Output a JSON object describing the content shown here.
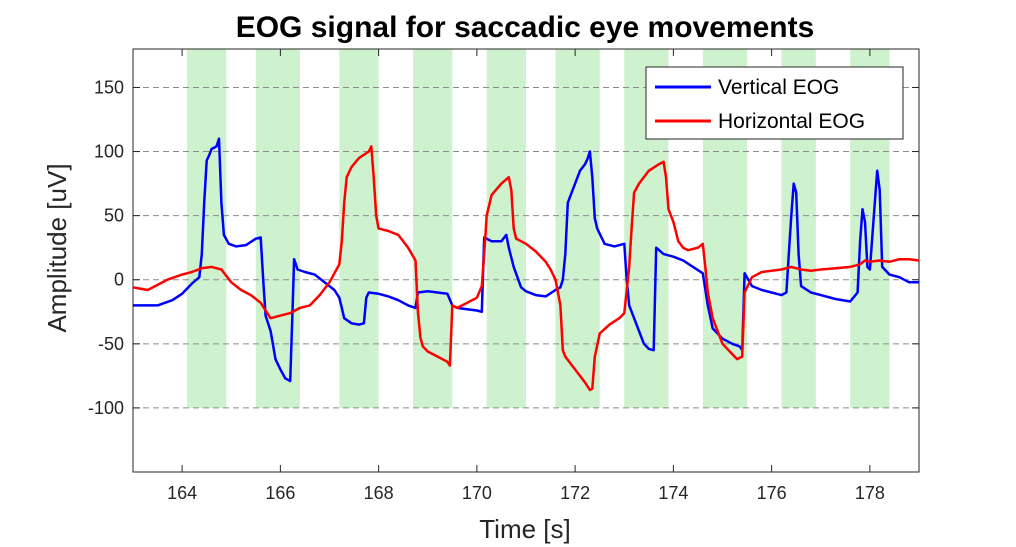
{
  "chart_data": {
    "type": "line",
    "title": "EOG signal for saccadic eye movements",
    "xlabel": "Time [s]",
    "ylabel": "Amplitude [uV]",
    "xlim": [
      163,
      179
    ],
    "ylim": [
      -150,
      180
    ],
    "xticks": [
      164,
      166,
      168,
      170,
      172,
      174,
      176,
      178
    ],
    "yticks": [
      150,
      100,
      50,
      0,
      -50,
      -100
    ],
    "grid": "horizontal-dashed",
    "legend_position": "top-right",
    "shaded_intervals": {
      "color": "#cdf2cd",
      "y_range": [
        -100,
        180
      ],
      "intervals": [
        [
          164.1,
          164.9
        ],
        [
          165.5,
          166.4
        ],
        [
          167.2,
          168.0
        ],
        [
          168.7,
          169.5
        ],
        [
          170.2,
          171.0
        ],
        [
          171.6,
          172.5
        ],
        [
          173.0,
          173.9
        ],
        [
          174.6,
          175.5
        ],
        [
          176.2,
          176.9
        ],
        [
          177.6,
          178.4
        ]
      ]
    },
    "series": [
      {
        "name": "Vertical EOG",
        "color": "#0000ff",
        "points": [
          [
            163.0,
            -20
          ],
          [
            163.5,
            -20
          ],
          [
            163.8,
            -16
          ],
          [
            164.0,
            -11
          ],
          [
            164.2,
            -3
          ],
          [
            164.35,
            2
          ],
          [
            164.4,
            20
          ],
          [
            164.45,
            60
          ],
          [
            164.5,
            93
          ],
          [
            164.55,
            97
          ],
          [
            164.6,
            102
          ],
          [
            164.7,
            104
          ],
          [
            164.75,
            110
          ],
          [
            164.8,
            60
          ],
          [
            164.85,
            35
          ],
          [
            164.95,
            28
          ],
          [
            165.1,
            26
          ],
          [
            165.3,
            27
          ],
          [
            165.5,
            32
          ],
          [
            165.6,
            33
          ],
          [
            165.65,
            0
          ],
          [
            165.7,
            -28
          ],
          [
            165.8,
            -40
          ],
          [
            165.9,
            -62
          ],
          [
            166.0,
            -70
          ],
          [
            166.1,
            -77
          ],
          [
            166.15,
            -78
          ],
          [
            166.2,
            -79
          ],
          [
            166.25,
            -20
          ],
          [
            166.28,
            16
          ],
          [
            166.35,
            8
          ],
          [
            166.5,
            6
          ],
          [
            166.7,
            4
          ],
          [
            166.9,
            -2
          ],
          [
            167.1,
            -8
          ],
          [
            167.2,
            -14
          ],
          [
            167.25,
            -22
          ],
          [
            167.3,
            -30
          ],
          [
            167.45,
            -34
          ],
          [
            167.6,
            -35
          ],
          [
            167.7,
            -34
          ],
          [
            167.75,
            -14
          ],
          [
            167.8,
            -10
          ],
          [
            168.0,
            -11
          ],
          [
            168.2,
            -13
          ],
          [
            168.4,
            -16
          ],
          [
            168.6,
            -20
          ],
          [
            168.75,
            -22
          ],
          [
            168.8,
            -10
          ],
          [
            169.0,
            -9
          ],
          [
            169.2,
            -10
          ],
          [
            169.4,
            -11
          ],
          [
            169.5,
            -20
          ],
          [
            169.6,
            -22
          ],
          [
            169.8,
            -23
          ],
          [
            170.0,
            -24
          ],
          [
            170.1,
            -25
          ],
          [
            170.15,
            33
          ],
          [
            170.3,
            30
          ],
          [
            170.5,
            30
          ],
          [
            170.6,
            35
          ],
          [
            170.65,
            25
          ],
          [
            170.75,
            10
          ],
          [
            170.9,
            -6
          ],
          [
            171.0,
            -9
          ],
          [
            171.2,
            -12
          ],
          [
            171.4,
            -13
          ],
          [
            171.6,
            -8
          ],
          [
            171.7,
            -6
          ],
          [
            171.75,
            0
          ],
          [
            171.8,
            20
          ],
          [
            171.85,
            60
          ],
          [
            171.9,
            65
          ],
          [
            172.0,
            75
          ],
          [
            172.1,
            85
          ],
          [
            172.2,
            90
          ],
          [
            172.25,
            94
          ],
          [
            172.3,
            100
          ],
          [
            172.35,
            80
          ],
          [
            172.4,
            48
          ],
          [
            172.45,
            40
          ],
          [
            172.6,
            28
          ],
          [
            172.8,
            26
          ],
          [
            173.0,
            28
          ],
          [
            173.05,
            0
          ],
          [
            173.1,
            -20
          ],
          [
            173.2,
            -30
          ],
          [
            173.3,
            -40
          ],
          [
            173.4,
            -50
          ],
          [
            173.5,
            -54
          ],
          [
            173.6,
            -55
          ],
          [
            173.65,
            25
          ],
          [
            173.8,
            20
          ],
          [
            174.0,
            18
          ],
          [
            174.2,
            15
          ],
          [
            174.4,
            10
          ],
          [
            174.6,
            5
          ],
          [
            174.7,
            -20
          ],
          [
            174.8,
            -38
          ],
          [
            175.0,
            -46
          ],
          [
            175.2,
            -50
          ],
          [
            175.35,
            -52
          ],
          [
            175.4,
            -55
          ],
          [
            175.45,
            5
          ],
          [
            175.6,
            -5
          ],
          [
            175.8,
            -8
          ],
          [
            176.0,
            -10
          ],
          [
            176.2,
            -12
          ],
          [
            176.3,
            -10
          ],
          [
            176.35,
            20
          ],
          [
            176.4,
            50
          ],
          [
            176.45,
            75
          ],
          [
            176.5,
            68
          ],
          [
            176.55,
            20
          ],
          [
            176.6,
            -5
          ],
          [
            176.8,
            -10
          ],
          [
            177.0,
            -12
          ],
          [
            177.3,
            -15
          ],
          [
            177.6,
            -17
          ],
          [
            177.75,
            -10
          ],
          [
            177.8,
            30
          ],
          [
            177.85,
            55
          ],
          [
            177.9,
            45
          ],
          [
            177.95,
            10
          ],
          [
            178.0,
            8
          ],
          [
            178.1,
            60
          ],
          [
            178.15,
            85
          ],
          [
            178.2,
            70
          ],
          [
            178.25,
            10
          ],
          [
            178.4,
            4
          ],
          [
            178.6,
            2
          ],
          [
            178.8,
            -2
          ],
          [
            179.0,
            -2
          ]
        ]
      },
      {
        "name": "Horizontal EOG",
        "color": "#ff0000",
        "points": [
          [
            163.0,
            -6
          ],
          [
            163.3,
            -8
          ],
          [
            163.5,
            -4
          ],
          [
            163.7,
            0
          ],
          [
            164.0,
            4
          ],
          [
            164.2,
            6
          ],
          [
            164.4,
            9
          ],
          [
            164.6,
            10
          ],
          [
            164.8,
            8
          ],
          [
            165.0,
            -2
          ],
          [
            165.2,
            -8
          ],
          [
            165.4,
            -12
          ],
          [
            165.6,
            -18
          ],
          [
            165.7,
            -24
          ],
          [
            165.8,
            -30
          ],
          [
            166.0,
            -28
          ],
          [
            166.2,
            -26
          ],
          [
            166.4,
            -22
          ],
          [
            166.6,
            -20
          ],
          [
            166.8,
            -12
          ],
          [
            167.0,
            -2
          ],
          [
            167.1,
            5
          ],
          [
            167.2,
            12
          ],
          [
            167.25,
            30
          ],
          [
            167.3,
            60
          ],
          [
            167.35,
            80
          ],
          [
            167.45,
            88
          ],
          [
            167.6,
            95
          ],
          [
            167.8,
            100
          ],
          [
            167.85,
            104
          ],
          [
            167.9,
            80
          ],
          [
            167.95,
            50
          ],
          [
            168.0,
            40
          ],
          [
            168.2,
            38
          ],
          [
            168.4,
            35
          ],
          [
            168.6,
            25
          ],
          [
            168.75,
            15
          ],
          [
            168.8,
            -25
          ],
          [
            168.85,
            -45
          ],
          [
            168.9,
            -52
          ],
          [
            169.0,
            -56
          ],
          [
            169.2,
            -60
          ],
          [
            169.4,
            -64
          ],
          [
            169.45,
            -67
          ],
          [
            169.5,
            -20
          ],
          [
            169.6,
            -22
          ],
          [
            169.8,
            -18
          ],
          [
            170.0,
            -14
          ],
          [
            170.1,
            -5
          ],
          [
            170.15,
            20
          ],
          [
            170.2,
            50
          ],
          [
            170.3,
            66
          ],
          [
            170.5,
            75
          ],
          [
            170.65,
            80
          ],
          [
            170.7,
            70
          ],
          [
            170.75,
            40
          ],
          [
            170.8,
            32
          ],
          [
            171.0,
            28
          ],
          [
            171.2,
            22
          ],
          [
            171.4,
            14
          ],
          [
            171.5,
            8
          ],
          [
            171.6,
            0
          ],
          [
            171.7,
            -20
          ],
          [
            171.75,
            -55
          ],
          [
            171.8,
            -60
          ],
          [
            172.0,
            -70
          ],
          [
            172.2,
            -80
          ],
          [
            172.3,
            -86
          ],
          [
            172.35,
            -85
          ],
          [
            172.4,
            -60
          ],
          [
            172.5,
            -42
          ],
          [
            172.7,
            -35
          ],
          [
            172.9,
            -30
          ],
          [
            173.0,
            -26
          ],
          [
            173.1,
            10
          ],
          [
            173.15,
            40
          ],
          [
            173.2,
            68
          ],
          [
            173.3,
            75
          ],
          [
            173.5,
            85
          ],
          [
            173.7,
            90
          ],
          [
            173.8,
            92
          ],
          [
            173.85,
            80
          ],
          [
            173.9,
            55
          ],
          [
            174.0,
            45
          ],
          [
            174.1,
            30
          ],
          [
            174.2,
            25
          ],
          [
            174.3,
            23
          ],
          [
            174.5,
            25
          ],
          [
            174.6,
            28
          ],
          [
            174.65,
            10
          ],
          [
            174.7,
            -10
          ],
          [
            174.8,
            -30
          ],
          [
            174.9,
            -40
          ],
          [
            175.0,
            -50
          ],
          [
            175.2,
            -58
          ],
          [
            175.3,
            -62
          ],
          [
            175.4,
            -60
          ],
          [
            175.45,
            -10
          ],
          [
            175.6,
            2
          ],
          [
            175.8,
            6
          ],
          [
            176.0,
            7
          ],
          [
            176.2,
            8
          ],
          [
            176.4,
            10
          ],
          [
            176.6,
            8
          ],
          [
            176.8,
            7
          ],
          [
            177.0,
            8
          ],
          [
            177.3,
            9
          ],
          [
            177.6,
            10
          ],
          [
            177.8,
            12
          ],
          [
            177.9,
            15
          ],
          [
            178.0,
            14
          ],
          [
            178.2,
            15
          ],
          [
            178.4,
            14
          ],
          [
            178.6,
            16
          ],
          [
            178.8,
            16
          ],
          [
            179.0,
            15
          ]
        ]
      }
    ]
  }
}
